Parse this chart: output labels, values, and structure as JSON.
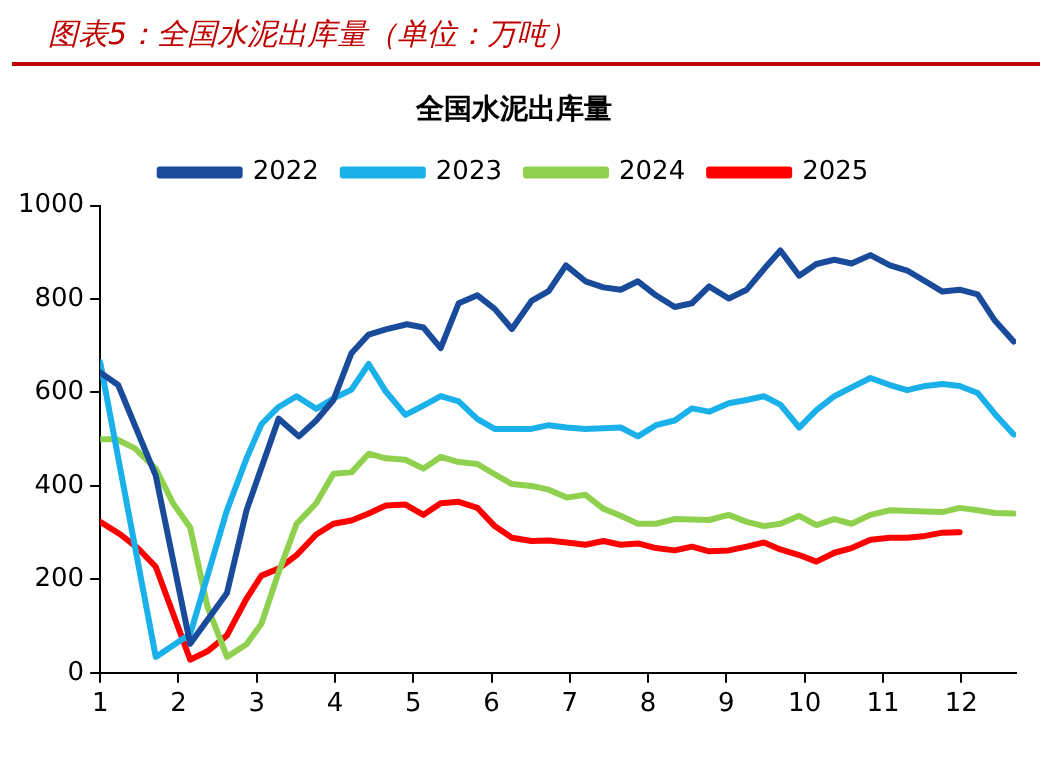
{
  "chart_data": {
    "type": "line",
    "title": "全国水泥出库量",
    "annotations": [
      "图表5：全国水泥出库量（单位：万吨）"
    ],
    "xlim": [
      1,
      12.7
    ],
    "xticks": [
      1,
      2,
      3,
      4,
      5,
      6,
      7,
      8,
      9,
      10,
      11,
      12
    ],
    "ylim": [
      0,
      1000
    ],
    "yticks": [
      0,
      200,
      400,
      600,
      800,
      1000
    ],
    "grid": false,
    "legend": "top",
    "marker": "none",
    "line_style": "solid",
    "series": [
      {
        "name": "2022",
        "color": "#1a4b9b",
        "x": [
          1,
          1.23,
          1.71,
          2.15,
          2.62,
          2.87,
          3.28,
          3.54,
          3.76,
          3.98,
          4.21,
          4.43,
          4.65,
          4.92,
          5.13,
          5.35,
          5.58,
          5.82,
          6.04,
          6.26,
          6.51,
          6.73,
          6.95,
          7.2,
          7.43,
          7.65,
          7.87,
          8.1,
          8.34,
          8.56,
          8.78,
          9.03,
          9.26,
          9.48,
          9.69,
          9.93,
          10.15,
          10.38,
          10.6,
          10.84,
          11.09,
          11.31,
          11.54,
          11.76,
          11.98,
          12.21,
          12.43,
          12.67
        ],
        "values": [
          643,
          616,
          422,
          62,
          171,
          348,
          544,
          506,
          540,
          584,
          684,
          724,
          735,
          746,
          739,
          695,
          791,
          808,
          779,
          736,
          796,
          817,
          872,
          838,
          825,
          820,
          838,
          808,
          783,
          791,
          827,
          801,
          820,
          864,
          904,
          850,
          875,
          884,
          876,
          894,
          872,
          861,
          838,
          816,
          820,
          810,
          754,
          709
        ]
      },
      {
        "name": "2023",
        "color": "#1ab0ea",
        "x": [
          1,
          1.71,
          2.15,
          2.62,
          2.87,
          3.06,
          3.28,
          3.51,
          3.76,
          3.98,
          4.21,
          4.43,
          4.65,
          4.9,
          5.13,
          5.35,
          5.58,
          5.82,
          6.04,
          6.51,
          6.73,
          6.96,
          7.2,
          7.65,
          7.87,
          8.1,
          8.34,
          8.56,
          8.78,
          9.03,
          9.26,
          9.48,
          9.69,
          9.93,
          10.15,
          10.38,
          10.6,
          10.84,
          11.09,
          11.31,
          11.54,
          11.76,
          11.98,
          12.21,
          12.43,
          12.67
        ],
        "values": [
          665,
          34,
          83,
          348,
          459,
          532,
          569,
          592,
          565,
          587,
          606,
          661,
          602,
          552,
          572,
          592,
          581,
          543,
          522,
          522,
          530,
          525,
          522,
          525,
          506,
          530,
          540,
          566,
          559,
          577,
          584,
          592,
          574,
          525,
          562,
          592,
          611,
          631,
          616,
          605,
          614,
          618,
          614,
          599,
          554,
          510
        ]
      },
      {
        "name": "2024",
        "color": "#8fd14f",
        "x": [
          1,
          1.21,
          1.44,
          1.71,
          1.93,
          2.15,
          2.37,
          2.62,
          2.87,
          3.06,
          3.28,
          3.51,
          3.76,
          3.98,
          4.21,
          4.43,
          4.65,
          4.9,
          5.13,
          5.35,
          5.58,
          5.82,
          6.04,
          6.26,
          6.51,
          6.73,
          6.96,
          7.2,
          7.43,
          7.65,
          7.87,
          8.1,
          8.34,
          8.78,
          9.03,
          9.26,
          9.48,
          9.69,
          9.93,
          10.15,
          10.38,
          10.6,
          10.84,
          11.09,
          11.54,
          11.76,
          11.98,
          12.21,
          12.43,
          12.67
        ],
        "values": [
          500,
          500,
          481,
          437,
          363,
          311,
          142,
          34,
          61,
          105,
          215,
          319,
          363,
          426,
          429,
          469,
          459,
          456,
          437,
          462,
          451,
          447,
          425,
          404,
          400,
          392,
          375,
          381,
          351,
          336,
          319,
          319,
          329,
          327,
          338,
          323,
          314,
          319,
          336,
          316,
          329,
          319,
          338,
          348,
          345,
          344,
          353,
          348,
          342,
          341
        ]
      },
      {
        "name": "2025",
        "color": "#ff0000",
        "x": [
          1,
          1.26,
          1.48,
          1.71,
          2.15,
          2.37,
          2.62,
          2.87,
          3.06,
          3.28,
          3.51,
          3.76,
          3.98,
          4.21,
          4.43,
          4.65,
          4.9,
          5.13,
          5.35,
          5.58,
          5.82,
          6.04,
          6.26,
          6.51,
          6.73,
          6.96,
          7.2,
          7.43,
          7.65,
          7.87,
          8.1,
          8.34,
          8.56,
          8.78,
          9.03,
          9.26,
          9.48,
          9.69,
          9.93,
          10.15,
          10.38,
          10.6,
          10.84,
          11.09,
          11.31,
          11.54,
          11.76,
          11.98
        ],
        "values": [
          323,
          296,
          267,
          227,
          28,
          46,
          80,
          159,
          208,
          223,
          252,
          296,
          319,
          326,
          341,
          358,
          360,
          338,
          363,
          366,
          353,
          314,
          289,
          282,
          283,
          279,
          274,
          282,
          274,
          277,
          267,
          262,
          270,
          260,
          262,
          270,
          279,
          264,
          252,
          238,
          257,
          267,
          285,
          289,
          289,
          293,
          300,
          301
        ]
      }
    ]
  }
}
